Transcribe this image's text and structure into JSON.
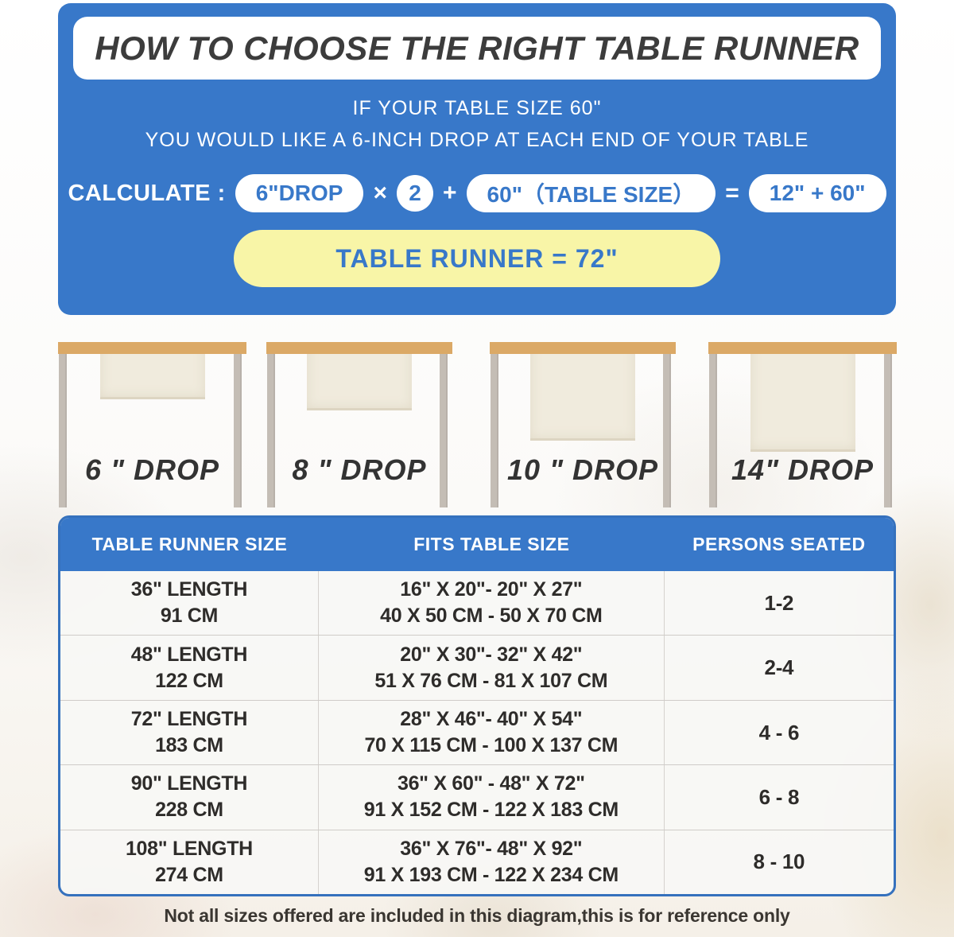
{
  "colors": {
    "accent_blue": "#3878C9",
    "pill_yellow": "#F8F5A7",
    "wood_tan": "#DBA966",
    "runner_cream": "#F0EBDD",
    "leg_gray": "#C4BDB5",
    "ink_dark": "#3C3C3C"
  },
  "header": {
    "title": "HOW TO CHOOSE THE RIGHT TABLE RUNNER"
  },
  "intro": {
    "line1": "IF YOUR TABLE SIZE 60\"",
    "line2": "YOU WOULD LIKE A 6-INCH DROP AT EACH END OF YOUR TABLE"
  },
  "calculation": {
    "label": "CALCULATE :",
    "drop_value": "6\"DROP",
    "times_sign": "×",
    "multiplier": "2",
    "plus_sign": "+",
    "table_size_value": "60\"（TABLE SIZE）",
    "equals_sign": "=",
    "sum_value": "12\" + 60\"",
    "result": "TABLE RUNNER = 72\""
  },
  "drop_examples": [
    {
      "label": "6 \" DROP"
    },
    {
      "label": "8 \" DROP"
    },
    {
      "label": "10 \" DROP"
    },
    {
      "label": "14\" DROP"
    }
  ],
  "size_table": {
    "headers": [
      "TABLE RUNNER SIZE",
      "FITS TABLE SIZE",
      "PERSONS SEATED"
    ],
    "rows": [
      {
        "runner_in": "36\" LENGTH",
        "runner_cm": "91 CM",
        "fits_in": "16\" X 20\"- 20\" X 27\"",
        "fits_cm": "40 X 50 CM - 50 X 70 CM",
        "persons": "1-2"
      },
      {
        "runner_in": "48\" LENGTH",
        "runner_cm": "122 CM",
        "fits_in": "20\" X 30\"- 32\" X 42\"",
        "fits_cm": "51 X 76 CM - 81 X 107 CM",
        "persons": "2-4"
      },
      {
        "runner_in": "72\" LENGTH",
        "runner_cm": "183 CM",
        "fits_in": "28\" X 46\"- 40\" X 54\"",
        "fits_cm": "70 X 115 CM - 100 X 137 CM",
        "persons": "4 - 6"
      },
      {
        "runner_in": "90\" LENGTH",
        "runner_cm": "228 CM",
        "fits_in": "36\" X 60\" - 48\" X 72\"",
        "fits_cm": "91 X 152 CM - 122 X 183 CM",
        "persons": "6 - 8"
      },
      {
        "runner_in": "108\" LENGTH",
        "runner_cm": "274 CM",
        "fits_in": "36\" X 76\"- 48\" X 92\"",
        "fits_cm": "91 X 193 CM - 122 X 234 CM",
        "persons": "8 - 10"
      }
    ]
  },
  "footnote": "Not all sizes offered are included in this diagram,this is for reference only"
}
